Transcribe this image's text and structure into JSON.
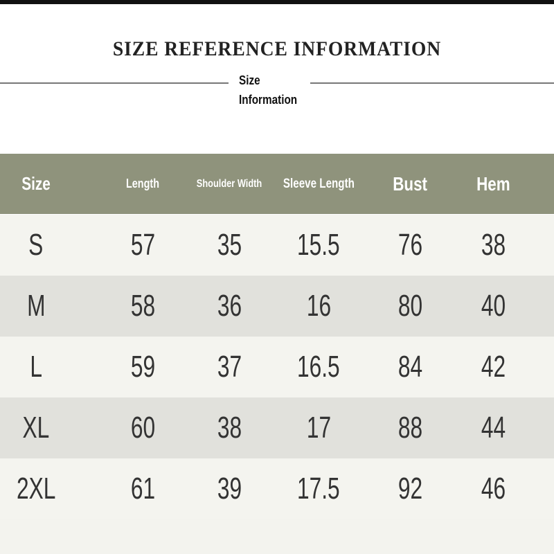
{
  "title": "SIZE REFERENCE INFORMATION",
  "subtitle_line1": "Size",
  "subtitle_line2": "Information",
  "colors": {
    "header_bg": "#8f937c",
    "row_light": "#f4f4ef",
    "row_dark": "#e1e1dc"
  },
  "table": {
    "headers": [
      "Size",
      "Length",
      "Shoulder Width",
      "Sleeve Length",
      "Bust",
      "Hem"
    ],
    "rows": [
      [
        "S",
        "57",
        "35",
        "15.5",
        "76",
        "38"
      ],
      [
        "M",
        "58",
        "36",
        "16",
        "80",
        "40"
      ],
      [
        "L",
        "59",
        "37",
        "16.5",
        "84",
        "42"
      ],
      [
        "XL",
        "60",
        "38",
        "17",
        "88",
        "44"
      ],
      [
        "2XL",
        "61",
        "39",
        "17.5",
        "92",
        "46"
      ]
    ]
  }
}
